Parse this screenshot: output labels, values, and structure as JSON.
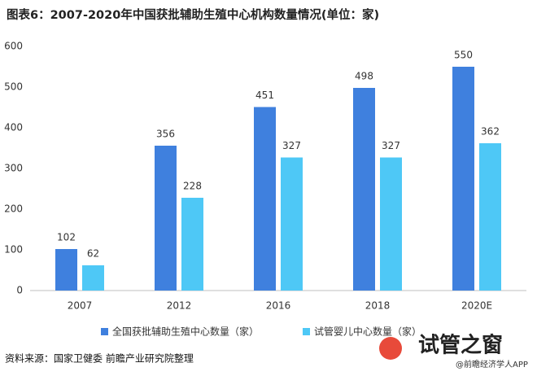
{
  "chart_data": {
    "type": "bar",
    "title": "图表6：2007-2020年中国获批辅助生殖中心机构数量情况(单位：家)",
    "categories": [
      "2007",
      "2012",
      "2016",
      "2018",
      "2020E"
    ],
    "series": [
      {
        "name": "全国获批辅助生殖中心数量（家）",
        "color": "#3f80de",
        "values": [
          102,
          356,
          451,
          498,
          550
        ]
      },
      {
        "name": "试管婴儿中心数量（家）",
        "color": "#4ec8f6",
        "values": [
          62,
          228,
          327,
          327,
          362
        ]
      }
    ],
    "ylim": [
      0,
      600
    ],
    "yticks": [
      0,
      100,
      200,
      300,
      400,
      500,
      600
    ],
    "grid": false,
    "legend": "bottom",
    "source": "资料来源：国家卫健委 前瞻产业研究院整理",
    "watermark": "试管之窗",
    "watermark_sub": "@前瞻经济学人APP"
  }
}
